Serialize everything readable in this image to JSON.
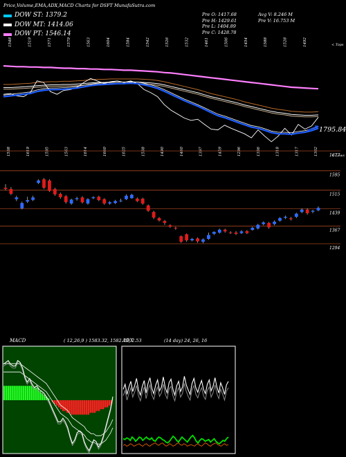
{
  "header": {
    "title": "Price,Volume,EMA,ADX,MACD Charts for DSFT MunafaSutra.com",
    "legend": [
      {
        "label": "DOW ST: 1379.2",
        "color": "#00c8ff"
      },
      {
        "label": "DOW MT: 1414.06",
        "color": "#ffffff"
      },
      {
        "label": "DOW PT: 1546.14",
        "color": "#ff7fff"
      }
    ],
    "stats_col1": [
      "Pre  O: 1417.68",
      "Pre  H: 1429.61",
      "Pre  L: 1404.89",
      "Pre  C: 1428.78"
    ],
    "stats_col2": [
      "Avg V: 8.246  M",
      "Pre  V: 16.753 M"
    ]
  },
  "colors": {
    "up": "#2e6bff",
    "down": "#e01b1b",
    "grid": "#a04520",
    "ema_short": "#1f5fff",
    "ema_long": "#ff7fff",
    "macd_green": "#22ff22",
    "macd_red": "#ff2020",
    "adx_green": "#00e000",
    "adx_orange": "#e06000"
  },
  "chart_data": [
    {
      "type": "line",
      "name": "price-ema-panel",
      "top_tick_labels": [
        "1548",
        "1519",
        "1571",
        "1579",
        "1563",
        "1604",
        "1584",
        "1542",
        "1526",
        "1532",
        "1461",
        "1506",
        "1454",
        "1588",
        "1528",
        "1492"
      ],
      "top_axis_label": "< Tops",
      "bottom_tick_labels": [
        "1538",
        "1619",
        "1595",
        "1563",
        "1614",
        "1660",
        "1625",
        "1538",
        "1490",
        "1460",
        "1397",
        "1459",
        "1296",
        "1336",
        "1318",
        "1317",
        "1302"
      ],
      "bottom_axis_label": "< Lows",
      "price_label": "1795.84",
      "series": [
        {
          "name": "close",
          "values": [
            1518,
            1520,
            1514,
            1512,
            1522,
            1552,
            1548,
            1525,
            1518,
            1528,
            1530,
            1536,
            1548,
            1558,
            1552,
            1545,
            1550,
            1552,
            1548,
            1552,
            1545,
            1530,
            1522,
            1512,
            1492,
            1478,
            1468,
            1458,
            1452,
            1455,
            1442,
            1430,
            1428,
            1440,
            1432,
            1425,
            1418,
            1408,
            1428,
            1412,
            1398,
            1412,
            1432,
            1415,
            1442,
            1430,
            1438,
            1460
          ]
        },
        {
          "name": "ema_short",
          "values": [
            1512,
            1514,
            1516,
            1518,
            1520,
            1525,
            1528,
            1530,
            1530,
            1531,
            1532,
            1534,
            1537,
            1540,
            1542,
            1543,
            1544,
            1545,
            1545,
            1546,
            1545,
            1542,
            1538,
            1533,
            1526,
            1518,
            1510,
            1502,
            1495,
            1488,
            1480,
            1472,
            1464,
            1459,
            1453,
            1447,
            1441,
            1435,
            1432,
            1427,
            1421,
            1418,
            1418,
            1417,
            1420,
            1422,
            1426,
            1432
          ]
        },
        {
          "name": "ema_mid",
          "values": [
            1535,
            1535,
            1536,
            1537,
            1538,
            1540,
            1541,
            1542,
            1542,
            1543,
            1543,
            1544,
            1545,
            1547,
            1548,
            1548,
            1549,
            1549,
            1549,
            1549,
            1549,
            1548,
            1547,
            1545,
            1542,
            1538,
            1534,
            1530,
            1526,
            1522,
            1517,
            1512,
            1508,
            1504,
            1500,
            1496,
            1491,
            1487,
            1483,
            1479,
            1475,
            1472,
            1470,
            1467,
            1466,
            1465,
            1465,
            1466
          ]
        },
        {
          "name": "ema_long",
          "values": [
            1590,
            1589,
            1588,
            1588,
            1587,
            1587,
            1586,
            1586,
            1585,
            1584,
            1584,
            1583,
            1583,
            1582,
            1582,
            1581,
            1581,
            1580,
            1579,
            1579,
            1578,
            1577,
            1576,
            1575,
            1573,
            1572,
            1570,
            1568,
            1566,
            1564,
            1562,
            1560,
            1558,
            1556,
            1554,
            1552,
            1550,
            1548,
            1546,
            1544,
            1542,
            1540,
            1538,
            1536,
            1535,
            1534,
            1533,
            1532
          ]
        }
      ]
    },
    {
      "type": "bar",
      "name": "candles-panel",
      "levels": [
        "1677",
        "1595",
        "1515",
        "1439",
        "1367",
        "1294"
      ],
      "series": [
        {
          "name": "open",
          "values": [
            1525,
            1520,
            1478,
            1440,
            1468,
            1475,
            1545,
            1560,
            1555,
            1520,
            1500,
            1490,
            1460,
            1478,
            1485,
            1460,
            1482,
            1488,
            1478,
            1460,
            1462,
            1470,
            1478,
            1482,
            1480,
            1480,
            1452,
            1425,
            1400,
            1388,
            1370,
            1360,
            1325,
            1333,
            1308,
            1316,
            1302,
            1314,
            1335,
            1340,
            1352,
            1341,
            1340,
            1338,
            1346,
            1351,
            1357,
            1375,
            1380,
            1375,
            1389,
            1401,
            1399,
            1405,
            1425,
            1435,
            1426,
            1432
          ]
        },
        {
          "name": "close",
          "values": [
            1520,
            1500,
            1485,
            1462,
            1474,
            1485,
            1555,
            1525,
            1512,
            1498,
            1486,
            1466,
            1476,
            1482,
            1465,
            1478,
            1486,
            1474,
            1460,
            1465,
            1470,
            1472,
            1492,
            1496,
            1470,
            1460,
            1430,
            1402,
            1390,
            1380,
            1364,
            1357,
            1302,
            1308,
            1314,
            1304,
            1312,
            1330,
            1343,
            1352,
            1345,
            1338,
            1335,
            1345,
            1338,
            1360,
            1372,
            1382,
            1362,
            1385,
            1400,
            1405,
            1395,
            1418,
            1435,
            1420,
            1430,
            1442
          ]
        },
        {
          "name": "high",
          "values": [
            1540,
            1528,
            1492,
            1468,
            1488,
            1492,
            1560,
            1565,
            1560,
            1525,
            1505,
            1495,
            1480,
            1488,
            1490,
            1482,
            1490,
            1492,
            1482,
            1470,
            1475,
            1480,
            1498,
            1500,
            1485,
            1484,
            1456,
            1430,
            1404,
            1392,
            1374,
            1364,
            1328,
            1336,
            1318,
            1320,
            1316,
            1340,
            1345,
            1356,
            1356,
            1346,
            1346,
            1350,
            1350,
            1364,
            1376,
            1386,
            1384,
            1390,
            1404,
            1410,
            1405,
            1422,
            1440,
            1440,
            1434,
            1448
          ]
        },
        {
          "name": "low",
          "values": [
            1515,
            1495,
            1470,
            1436,
            1462,
            1470,
            1540,
            1520,
            1508,
            1492,
            1480,
            1460,
            1455,
            1472,
            1460,
            1455,
            1478,
            1470,
            1455,
            1455,
            1458,
            1466,
            1474,
            1480,
            1466,
            1455,
            1426,
            1396,
            1386,
            1372,
            1360,
            1352,
            1298,
            1302,
            1304,
            1298,
            1296,
            1310,
            1330,
            1336,
            1340,
            1334,
            1330,
            1334,
            1334,
            1348,
            1353,
            1370,
            1356,
            1370,
            1385,
            1396,
            1390,
            1400,
            1420,
            1414,
            1420,
            1428
          ]
        }
      ]
    },
    {
      "type": "bar",
      "name": "macd-panel",
      "title": "MACD",
      "params": "( 12,26,9 ) 1583.32,  1582.79,  2.53",
      "series": [
        {
          "name": "histogram",
          "values": [
            8,
            8,
            8,
            8,
            8,
            8,
            8,
            8,
            8,
            8,
            8,
            8,
            8,
            8,
            7,
            7,
            7,
            5,
            4,
            3,
            2,
            1,
            0,
            -1,
            -2,
            -3,
            -4,
            -5,
            -6,
            -6,
            -7,
            -7,
            -8,
            -8,
            -8,
            -8,
            -8,
            -8,
            -8,
            -8,
            -8,
            -7,
            -7,
            -7,
            -6,
            -6,
            -5,
            -5,
            -4,
            -4,
            -3,
            -2
          ]
        },
        {
          "name": "macd",
          "values": [
            20,
            21,
            22,
            20,
            19,
            19,
            22,
            21,
            18,
            13,
            10,
            12,
            9,
            7,
            8,
            6,
            5,
            4,
            2,
            0,
            -3,
            -6,
            -9,
            -12,
            -12,
            -10,
            -12,
            -15,
            -20,
            -24,
            -22,
            -18,
            -17,
            -18,
            -23,
            -26,
            -28,
            -25,
            -22,
            -23,
            -26,
            -24,
            -20,
            -15,
            -10,
            -5,
            2
          ]
        },
        {
          "name": "signal",
          "values": [
            18,
            18,
            18,
            18,
            18,
            18,
            18,
            18,
            17,
            16,
            15,
            14,
            13,
            12,
            11,
            10,
            9,
            8,
            7,
            5,
            3,
            1,
            -1,
            -3,
            -5,
            -6,
            -7,
            -8,
            -10,
            -12,
            -13,
            -14,
            -15,
            -16,
            -17,
            -19,
            -20,
            -21,
            -21,
            -22,
            -22,
            -22,
            -21,
            -20,
            -18,
            -16,
            -13
          ]
        }
      ]
    },
    {
      "type": "line",
      "name": "adx-panel",
      "title": "ADX",
      "params": "(14 day) 24,  26,  16",
      "series": [
        {
          "name": "plus_di",
          "values": [
            22,
            21,
            23,
            22,
            20,
            24,
            22,
            19,
            21,
            24,
            23,
            20,
            22,
            24,
            22,
            21,
            23,
            20,
            19,
            22,
            24,
            23,
            21,
            20,
            18,
            17,
            19,
            22,
            25,
            23,
            20,
            18,
            21,
            24,
            22,
            20,
            18,
            21,
            24,
            26,
            23,
            19,
            17,
            20,
            22,
            21,
            19,
            20,
            21,
            18,
            20,
            22,
            19,
            17,
            16,
            18,
            20,
            19,
            22,
            24
          ]
        },
        {
          "name": "minus_di",
          "values": [
            14,
            15,
            13,
            14,
            16,
            15,
            13,
            14,
            15,
            16,
            14,
            13,
            15,
            16,
            14,
            13,
            15,
            16,
            17,
            15,
            14,
            16,
            17,
            15,
            13,
            14,
            16,
            15,
            13,
            14,
            16,
            17,
            15,
            14,
            16,
            15,
            13,
            14,
            15,
            14,
            13,
            15,
            16,
            14,
            13,
            15,
            17,
            16,
            14,
            13,
            15,
            16,
            17,
            15,
            14,
            13,
            15,
            16,
            14,
            15
          ]
        },
        {
          "name": "adx",
          "values": [
            55,
            62,
            48,
            58,
            66,
            52,
            60,
            70,
            54,
            47,
            59,
            67,
            50,
            63,
            71,
            56,
            49,
            61,
            68,
            53,
            58,
            72,
            57,
            50,
            64,
            69,
            55,
            47,
            60,
            66,
            52,
            58,
            73,
            61,
            54,
            48,
            63,
            70,
            57,
            51,
            60,
            67,
            55,
            49,
            62,
            68,
            53,
            59,
            71,
            58,
            50,
            64,
            57,
            48,
            61,
            66
          ]
        },
        {
          "name": "adx_ghost",
          "values": [
            50,
            57,
            44,
            53,
            61,
            48,
            55,
            64,
            50,
            43,
            54,
            62,
            46,
            58,
            65,
            51,
            45,
            56,
            62,
            49,
            54,
            66,
            52,
            46,
            59,
            63,
            50,
            43,
            55,
            61,
            48,
            53,
            67,
            56,
            49,
            44,
            58,
            64,
            52,
            47,
            55,
            61,
            50,
            45,
            57,
            62,
            48,
            54,
            65,
            53,
            46,
            59,
            52,
            44,
            56,
            61
          ]
        }
      ]
    }
  ]
}
